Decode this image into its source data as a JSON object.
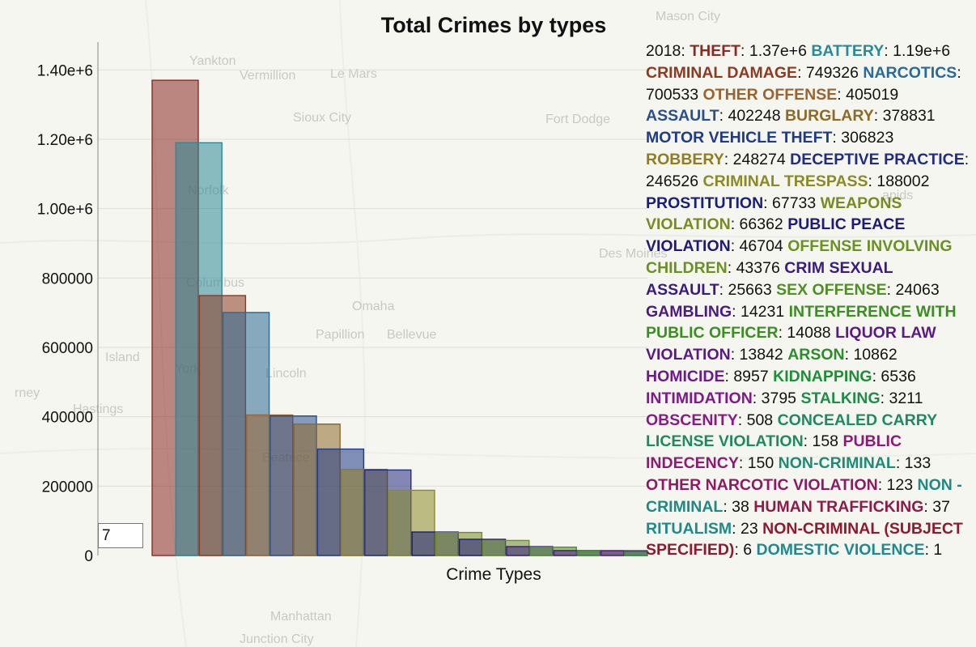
{
  "map_labels": [
    {
      "text": "Mason City"
    },
    {
      "text": "Yankton"
    },
    {
      "text": "Vermillion"
    },
    {
      "text": "Le Mars"
    },
    {
      "text": "Sioux City"
    },
    {
      "text": "Fort Dodge"
    },
    {
      "text": "Norfolk"
    },
    {
      "text": "Columbus"
    },
    {
      "text": "Omaha"
    },
    {
      "text": "Papillion"
    },
    {
      "text": "Bellevue"
    },
    {
      "text": "Lincoln"
    },
    {
      "text": "Island"
    },
    {
      "text": "York"
    },
    {
      "text": "Hastings"
    },
    {
      "text": "Beatrice"
    },
    {
      "text": "Des Moines"
    },
    {
      "text": "Manhattan"
    },
    {
      "text": "Junction City"
    },
    {
      "text": "apids"
    },
    {
      "text": "rney"
    }
  ],
  "frame_input": {
    "value": "7"
  },
  "legend": {
    "year_prefix": "2018:"
  },
  "chart_data": {
    "type": "bar",
    "title": "Total Crimes by types",
    "xlabel": "Crime Types",
    "ylabel": "",
    "ylim": [
      0,
      1480000
    ],
    "yticks": [
      0,
      200000,
      400000,
      600000,
      800000,
      1000000,
      1200000,
      1400000
    ],
    "ytick_labels": [
      "0",
      "200000",
      "400000",
      "600000",
      "800000",
      "1.00e+6",
      "1.20e+6",
      "1.40e+6"
    ],
    "grid": true,
    "legend_placement": "right",
    "categories": [
      "THEFT",
      "BATTERY",
      "CRIMINAL DAMAGE",
      "NARCOTICS",
      "OTHER OFFENSE",
      "ASSAULT",
      "BURGLARY",
      "MOTOR VEHICLE THEFT",
      "ROBBERY",
      "DECEPTIVE PRACTICE",
      "CRIMINAL TRESPASS",
      "PROSTITUTION",
      "WEAPONS VIOLATION",
      "PUBLIC PEACE VIOLATION",
      "OFFENSE INVOLVING CHILDREN",
      "CRIM SEXUAL ASSAULT",
      "SEX OFFENSE",
      "GAMBLING",
      "INTERFERENCE WITH PUBLIC OFFICER",
      "LIQUOR LAW VIOLATION",
      "ARSON",
      "HOMICIDE",
      "KIDNAPPING",
      "INTIMIDATION",
      "STALKING",
      "OBSCENITY",
      "CONCEALED CARRY LICENSE VIOLATION",
      "PUBLIC INDECENCY",
      "NON-CRIMINAL",
      "OTHER NARCOTIC VIOLATION",
      "NON - CRIMINAL",
      "HUMAN TRAFFICKING",
      "RITUALISM",
      "NON-CRIMINAL (SUBJECT SPECIFIED)",
      "DOMESTIC VIOLENCE"
    ],
    "values": [
      1370000,
      1190000,
      749326,
      700533,
      405019,
      402248,
      378831,
      306823,
      248274,
      246526,
      188002,
      67733,
      66362,
      46704,
      43376,
      25663,
      24063,
      14231,
      14088,
      13842,
      10862,
      8957,
      6536,
      3795,
      3211,
      508,
      158,
      150,
      133,
      123,
      38,
      37,
      23,
      6,
      1
    ],
    "value_labels": [
      "1.37e+6",
      "1.19e+6",
      "749326",
      "700533",
      "405019",
      "402248",
      "378831",
      "306823",
      "248274",
      "246526",
      "188002",
      "67733",
      "66362",
      "46704",
      "43376",
      "25663",
      "24063",
      "14231",
      "14088",
      "13842",
      "10862",
      "8957",
      "6536",
      "3795",
      "3211",
      "508",
      "158",
      "150",
      "133",
      "123",
      "38",
      "37",
      "23",
      "6",
      "1"
    ],
    "colors": [
      "#8b2a22",
      "#2b8a98",
      "#8e3a22",
      "#2a6a94",
      "#9a6330",
      "#2a4f8c",
      "#8e6a28",
      "#1f3a86",
      "#8f7d22",
      "#222c80",
      "#8a8a26",
      "#1a1f78",
      "#7a8a22",
      "#1f1a78",
      "#6a9222",
      "#3a1c7e",
      "#4e9024",
      "#4a1c82",
      "#3a8e22",
      "#5a1a86",
      "#2a8e2a",
      "#6e1a8a",
      "#1f8e38",
      "#7e1a8a",
      "#1e8c4a",
      "#8a1a86",
      "#1e8a5e",
      "#8e1a78",
      "#1e8c74",
      "#8e1a62",
      "#1e8a82",
      "#8e1a4a",
      "#1e8a8a",
      "#8e1a30",
      "#1e8a8e"
    ]
  }
}
